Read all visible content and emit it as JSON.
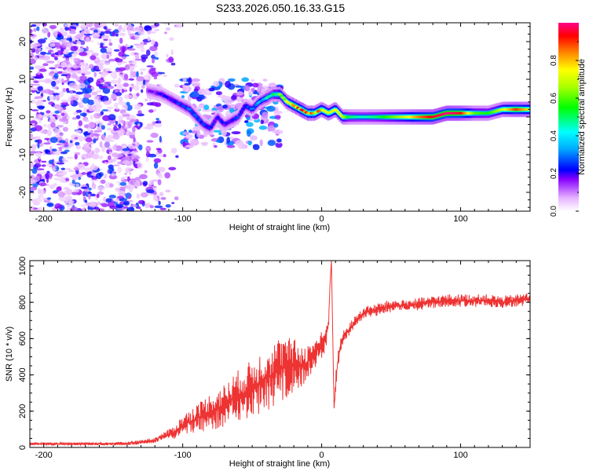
{
  "title": "S233.2026.050.16.33.G15",
  "chart_data": [
    {
      "type": "heatmap",
      "name": "spectrogram",
      "title": "S233.2026.050.16.33.G15",
      "xlabel": "Height of straight line (km)",
      "ylabel": "Frequency (Hz)",
      "xlim": [
        -210,
        150
      ],
      "ylim": [
        -25,
        25
      ],
      "xticks": [
        -200,
        -100,
        0,
        100
      ],
      "xtick_labels": [
        "-200",
        "-100",
        "0",
        "100"
      ],
      "yticks": [
        -20,
        -10,
        0,
        10,
        20
      ],
      "ytick_labels": [
        "-20",
        "-10",
        "0",
        "10",
        "20"
      ],
      "colorbar": {
        "label": "Normalized spectral amplitude",
        "range": [
          0,
          1
        ],
        "ticks": [
          0.0,
          0.2,
          0.4,
          0.6,
          0.8
        ],
        "tick_labels": [
          "0.0",
          "0.2",
          "0.4",
          "0.6",
          "0.8"
        ]
      },
      "ridge": {
        "description": "dominant frequency track vs height",
        "x": [
          -125,
          -115,
          -105,
          -100,
          -95,
          -90,
          -85,
          -80,
          -75,
          -70,
          -65,
          -60,
          -55,
          -50,
          -45,
          -40,
          -35,
          -30,
          -25,
          -20,
          -15,
          -10,
          -5,
          0,
          5,
          10,
          15,
          20,
          30,
          40,
          50,
          60,
          70,
          80,
          90,
          100,
          110,
          120,
          130,
          140,
          150
        ],
        "frequency_hz": [
          7,
          6,
          4,
          3,
          2,
          0,
          -2,
          -3,
          0,
          -2,
          -1,
          0,
          3,
          2,
          4,
          5,
          6,
          6,
          4,
          3,
          2,
          1,
          1,
          2,
          1,
          2,
          0,
          0,
          0,
          0,
          0,
          0,
          0,
          0,
          1,
          1,
          1,
          1,
          2,
          2,
          2
        ],
        "amplitude": [
          0.15,
          0.2,
          0.22,
          0.25,
          0.3,
          0.28,
          0.25,
          0.25,
          0.22,
          0.2,
          0.22,
          0.25,
          0.25,
          0.3,
          0.35,
          0.4,
          0.5,
          0.6,
          0.7,
          0.8,
          0.85,
          0.85,
          0.8,
          0.75,
          0.7,
          0.75,
          0.7,
          0.5,
          0.45,
          0.5,
          0.6,
          0.7,
          0.85,
          0.95,
          1.0,
          0.95,
          0.6,
          0.55,
          0.7,
          0.9,
          0.75
        ]
      }
    },
    {
      "type": "line",
      "name": "snr",
      "xlabel": "Height of straight line (km)",
      "ylabel": "SNR (10 * v/v)",
      "xlim": [
        -210,
        150
      ],
      "ylim": [
        0,
        1030
      ],
      "xticks": [
        -200,
        -100,
        0,
        100
      ],
      "xtick_labels": [
        "-200",
        "-100",
        "0",
        "100"
      ],
      "yticks": [
        0,
        200,
        400,
        600,
        800,
        1000
      ],
      "ytick_labels": [
        "0",
        "200",
        "400",
        "600",
        "800",
        "1000"
      ],
      "color": "#ee3333",
      "series": [
        {
          "name": "SNR",
          "x": [
            -210,
            -200,
            -190,
            -180,
            -170,
            -160,
            -150,
            -140,
            -130,
            -120,
            -115,
            -110,
            -105,
            -100,
            -95,
            -90,
            -85,
            -80,
            -75,
            -70,
            -65,
            -60,
            -55,
            -50,
            -45,
            -40,
            -35,
            -30,
            -25,
            -20,
            -15,
            -10,
            -5,
            0,
            3,
            5,
            6,
            7,
            8,
            9,
            10,
            12,
            15,
            20,
            25,
            30,
            40,
            50,
            60,
            70,
            80,
            90,
            100,
            110,
            120,
            130,
            140,
            150
          ],
          "y": [
            20,
            20,
            20,
            20,
            20,
            20,
            20,
            22,
            30,
            40,
            60,
            70,
            90,
            120,
            140,
            160,
            180,
            200,
            210,
            230,
            260,
            290,
            300,
            330,
            350,
            380,
            400,
            430,
            440,
            450,
            450,
            470,
            520,
            560,
            600,
            700,
            900,
            1030,
            600,
            200,
            350,
            500,
            600,
            650,
            700,
            740,
            760,
            780,
            780,
            790,
            800,
            810,
            810,
            810,
            810,
            800,
            810,
            820
          ],
          "noise": [
            8,
            8,
            8,
            8,
            8,
            8,
            8,
            10,
            12,
            15,
            20,
            30,
            40,
            60,
            70,
            80,
            90,
            100,
            110,
            120,
            130,
            140,
            150,
            160,
            170,
            180,
            180,
            180,
            170,
            150,
            120,
            100,
            90,
            80,
            60,
            40,
            0,
            0,
            0,
            0,
            60,
            50,
            40,
            35,
            35,
            35,
            35,
            35,
            35,
            35,
            35,
            35,
            35,
            35,
            35,
            35,
            35,
            35
          ]
        }
      ]
    }
  ]
}
